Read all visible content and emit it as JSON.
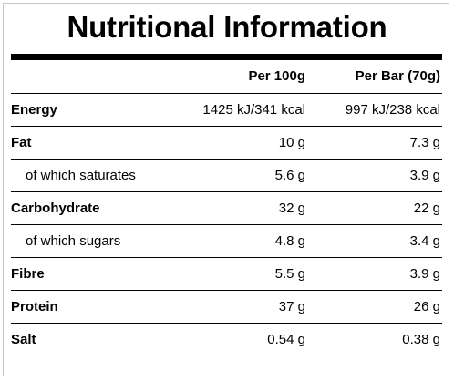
{
  "title": "Nutritional Information",
  "columns": {
    "per_100g": "Per 100g",
    "per_bar": "Per Bar (70g)"
  },
  "rows": [
    {
      "name": "Energy",
      "per_100g": "1425 kJ/341 kcal",
      "per_bar": "997 kJ/238 kcal"
    },
    {
      "name": "Fat",
      "per_100g": "10 g",
      "per_bar": "7.3 g"
    },
    {
      "name": "of which saturates",
      "per_100g": "5.6 g",
      "per_bar": "3.9 g"
    },
    {
      "name": "Carbohydrate",
      "per_100g": "32 g",
      "per_bar": "22 g"
    },
    {
      "name": "of which sugars",
      "per_100g": "4.8 g",
      "per_bar": "3.4 g"
    },
    {
      "name": "Fibre",
      "per_100g": "5.5 g",
      "per_bar": "3.9 g"
    },
    {
      "name": "Protein",
      "per_100g": "37 g",
      "per_bar": "26 g"
    },
    {
      "name": "Salt",
      "per_100g": "0.54 g",
      "per_bar": "0.38 g"
    }
  ]
}
